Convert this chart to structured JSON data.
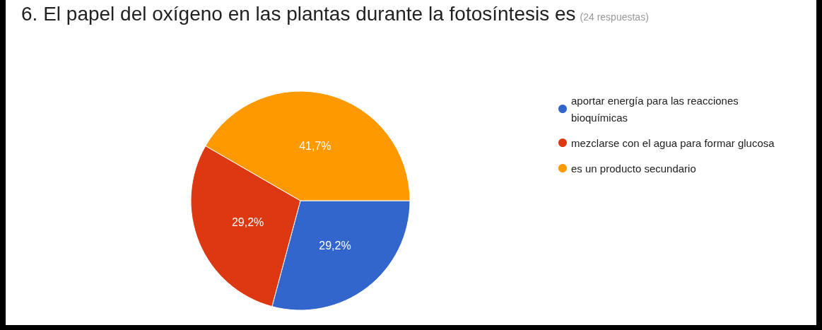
{
  "chart_data": {
    "type": "pie",
    "title": "6. El papel del oxígeno en las plantas durante la fotosíntesis es",
    "subtitle": "(24 respuestas)",
    "categories": [
      "aportar energía para las reacciones bioquímicas",
      "mezclarse con el agua para formar glucosa",
      "es un producto secundario"
    ],
    "values": [
      29.2,
      29.2,
      41.7
    ],
    "colors": [
      "#3366cc",
      "#dc3912",
      "#ff9900"
    ],
    "value_labels": [
      "29,2%",
      "29,2%",
      "41,7%"
    ],
    "legend": "right"
  }
}
